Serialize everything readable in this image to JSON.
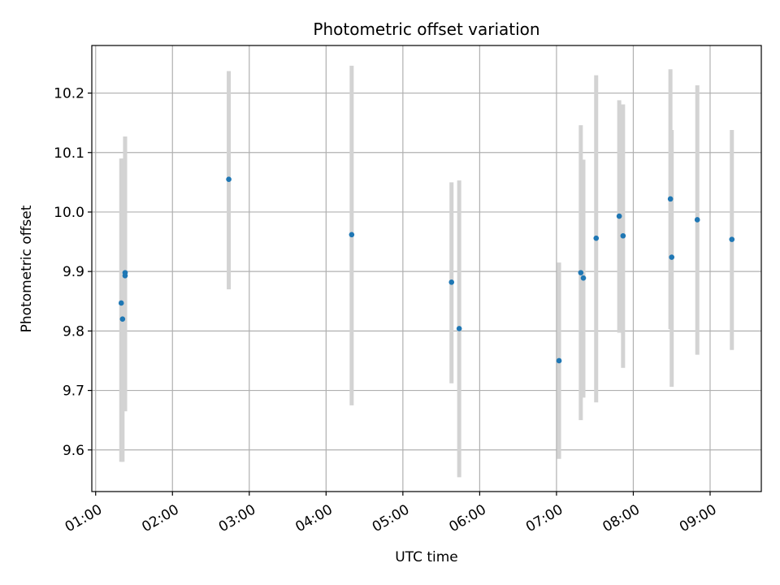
{
  "chart_data": {
    "type": "scatter",
    "title": "Photometric offset variation",
    "xlabel": "UTC time",
    "ylabel": "Photometric offset",
    "x_ticks": [
      "01:00",
      "02:00",
      "03:00",
      "04:00",
      "05:00",
      "06:00",
      "07:00",
      "08:00",
      "09:00"
    ],
    "y_ticks": [
      9.6,
      9.7,
      9.8,
      9.9,
      10.0,
      10.1,
      10.2
    ],
    "xlim": [
      "00:57",
      "09:40"
    ],
    "ylim": [
      9.53,
      10.28
    ],
    "grid": true,
    "colors": {
      "point": "#1f77b4",
      "errorbar": "#d3d3d3",
      "grid": "#b0b0b0"
    },
    "points": [
      {
        "x": "01:20",
        "y": 9.847,
        "yerr_low": 9.58,
        "yerr_high": 10.09
      },
      {
        "x": "01:21",
        "y": 9.82,
        "yerr_low": 9.58,
        "yerr_high": 10.09
      },
      {
        "x": "01:23",
        "y": 9.893,
        "yerr_low": 9.665,
        "yerr_high": 10.127
      },
      {
        "x": "01:23",
        "y": 9.898,
        "yerr_low": 9.665,
        "yerr_high": 10.127
      },
      {
        "x": "02:44",
        "y": 10.055,
        "yerr_low": 9.87,
        "yerr_high": 10.237
      },
      {
        "x": "04:20",
        "y": 9.962,
        "yerr_low": 9.675,
        "yerr_high": 10.246
      },
      {
        "x": "05:38",
        "y": 9.882,
        "yerr_low": 9.712,
        "yerr_high": 10.05
      },
      {
        "x": "05:44",
        "y": 9.804,
        "yerr_low": 9.554,
        "yerr_high": 10.053
      },
      {
        "x": "07:02",
        "y": 9.75,
        "yerr_low": 9.585,
        "yerr_high": 9.915
      },
      {
        "x": "07:19",
        "y": 9.898,
        "yerr_low": 9.65,
        "yerr_high": 10.146
      },
      {
        "x": "07:21",
        "y": 9.889,
        "yerr_low": 9.688,
        "yerr_high": 10.088
      },
      {
        "x": "07:31",
        "y": 9.956,
        "yerr_low": 9.68,
        "yerr_high": 10.23
      },
      {
        "x": "07:49",
        "y": 9.993,
        "yerr_low": 9.797,
        "yerr_high": 10.188
      },
      {
        "x": "07:52",
        "y": 9.96,
        "yerr_low": 9.738,
        "yerr_high": 10.181
      },
      {
        "x": "08:29",
        "y": 10.022,
        "yerr_low": 9.803,
        "yerr_high": 10.24
      },
      {
        "x": "08:30",
        "y": 9.924,
        "yerr_low": 9.706,
        "yerr_high": 10.138
      },
      {
        "x": "08:50",
        "y": 9.987,
        "yerr_low": 9.76,
        "yerr_high": 10.213
      },
      {
        "x": "09:17",
        "y": 9.954,
        "yerr_low": 9.768,
        "yerr_high": 10.138
      }
    ]
  }
}
